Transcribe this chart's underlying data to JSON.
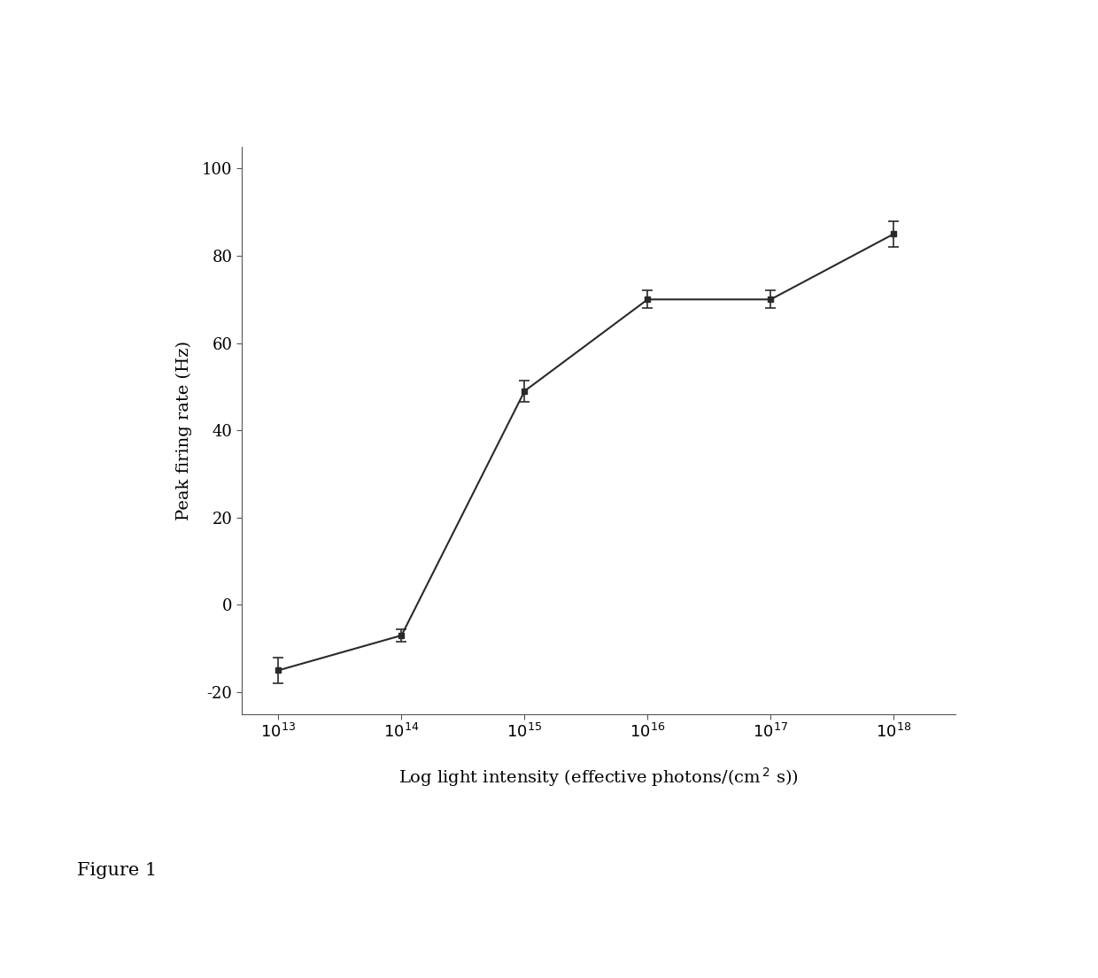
{
  "x_values": [
    10000000000000.0,
    100000000000000.0,
    1000000000000000.0,
    1e+16,
    1e+17,
    1e+18
  ],
  "y_values": [
    -15,
    -7,
    49,
    70,
    70,
    85
  ],
  "y_errors": [
    3,
    1.5,
    2.5,
    2,
    2,
    3
  ],
  "ylabel": "Peak firing rate (Hz)",
  "xlabel": "Log light intensity (effective photons/(cm$^{\\, 2}$ s))",
  "figure_label": "Figure 1",
  "ylim": [
    -25,
    105
  ],
  "yticks": [
    -20,
    0,
    20,
    40,
    60,
    80,
    100
  ],
  "xticks": [
    10000000000000.0,
    100000000000000.0,
    1000000000000000.0,
    1e+16,
    1e+17,
    1e+18
  ],
  "line_color": "#2a2a2a",
  "marker_color": "#2a2a2a",
  "background_color": "#ffffff",
  "label_fontsize": 14,
  "tick_fontsize": 13,
  "figlabel_fontsize": 15
}
